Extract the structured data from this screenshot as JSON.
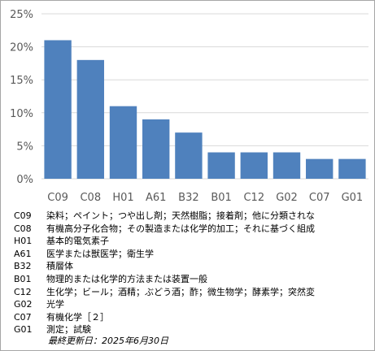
{
  "chart_data": {
    "type": "bar",
    "categories": [
      "C09",
      "C08",
      "H01",
      "A61",
      "B32",
      "B01",
      "C12",
      "G02",
      "C07",
      "G01"
    ],
    "values": [
      21,
      18,
      11,
      9,
      7,
      4,
      4,
      4,
      3,
      3
    ],
    "ylim": [
      0,
      25
    ],
    "yticks": [
      "0%",
      "5%",
      "10%",
      "15%",
      "20%",
      "25%"
    ],
    "ytick_values": [
      0,
      5,
      10,
      15,
      20,
      25
    ],
    "grid": true,
    "bar_color": "#4f81bd"
  },
  "legend": [
    {
      "code": "C09",
      "desc": "染料；ペイント；つや出し剤；天然樹脂；接着剤；他に分類されな"
    },
    {
      "code": "C08",
      "desc": "有機高分子化合物；その製造または化学的加工；それに基づく組成"
    },
    {
      "code": "H01",
      "desc": "基本的電気素子"
    },
    {
      "code": "A61",
      "desc": "医学または獣医学；衛生学"
    },
    {
      "code": "B32",
      "desc": "積層体"
    },
    {
      "code": "B01",
      "desc": "物理的または化学的方法または装置一般"
    },
    {
      "code": "C12",
      "desc": "生化学；ビール；酒精；ぶどう酒；酢；微生物学；酵素学；突然変"
    },
    {
      "code": "G02",
      "desc": "光学"
    },
    {
      "code": "C07",
      "desc": "有機化学［２］"
    },
    {
      "code": "G01",
      "desc": "測定；試験"
    }
  ],
  "footer": {
    "updated": "最終更新日：2025年6月30日"
  }
}
